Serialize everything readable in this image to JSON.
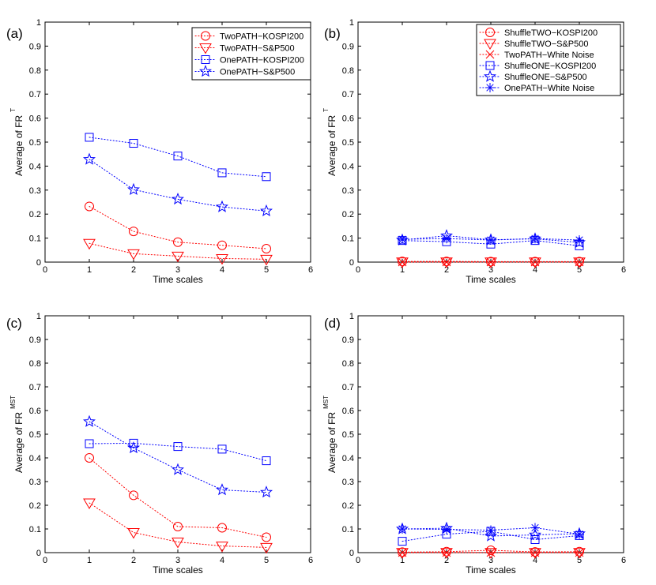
{
  "chart_data": [
    {
      "type": "line",
      "panel_label": "(a)",
      "xlabel": "Time scales",
      "ylabel": "Average of FR",
      "ylabel_sup": "T",
      "xlim": [
        0,
        6
      ],
      "ylim": [
        0,
        1
      ],
      "xticks": [
        "0",
        "1",
        "2",
        "3",
        "4",
        "5",
        "6"
      ],
      "yticks": [
        "0",
        "0.1",
        "0.2",
        "0.3",
        "0.4",
        "0.5",
        "0.6",
        "0.7",
        "0.8",
        "0.9",
        "1"
      ],
      "legend_position": "top-right",
      "x": [
        1,
        2,
        3,
        4,
        5
      ],
      "series": [
        {
          "name": "TwoPATH−KOSPI200",
          "marker": "circle",
          "color": "#ff0000",
          "values": [
            0.232,
            0.128,
            0.083,
            0.07,
            0.056
          ]
        },
        {
          "name": "TwoPATH−S&P500",
          "marker": "triangle-down",
          "color": "#ff0000",
          "values": [
            0.078,
            0.035,
            0.025,
            0.015,
            0.012
          ]
        },
        {
          "name": "OnePATH−KOSPI200",
          "marker": "square",
          "color": "#0000ff",
          "values": [
            0.52,
            0.495,
            0.442,
            0.372,
            0.356
          ]
        },
        {
          "name": "OnePATH−S&P500",
          "marker": "star",
          "color": "#0000ff",
          "values": [
            0.428,
            0.302,
            0.262,
            0.23,
            0.213
          ]
        }
      ]
    },
    {
      "type": "line",
      "panel_label": "(b)",
      "xlabel": "Time scales",
      "ylabel": "Average of FR",
      "ylabel_sup": "T",
      "xlim": [
        0,
        6
      ],
      "ylim": [
        0,
        1
      ],
      "xticks": [
        "0",
        "1",
        "2",
        "3",
        "4",
        "5",
        "6"
      ],
      "yticks": [
        "0",
        "0.1",
        "0.2",
        "0.3",
        "0.4",
        "0.5",
        "0.6",
        "0.7",
        "0.8",
        "0.9",
        "1"
      ],
      "legend_position": "top-right",
      "x": [
        1,
        2,
        3,
        4,
        5
      ],
      "series": [
        {
          "name": "ShuffleTWO−KOSPI200",
          "marker": "circle",
          "color": "#ff0000",
          "values": [
            0.003,
            0.003,
            0.002,
            0.002,
            0.002
          ]
        },
        {
          "name": "ShuffleTWO−S&P500",
          "marker": "triangle-down",
          "color": "#ff0000",
          "values": [
            0.001,
            0.001,
            0.001,
            0.001,
            0.001
          ]
        },
        {
          "name": "TwoPATH−White Noise",
          "marker": "x",
          "color": "#ff0000",
          "values": [
            0.0,
            0.0,
            0.0,
            0.0,
            0.0
          ]
        },
        {
          "name": "ShuffleONE−KOSPI200",
          "marker": "square",
          "color": "#0000ff",
          "values": [
            0.09,
            0.085,
            0.075,
            0.09,
            0.068
          ]
        },
        {
          "name": "ShuffleONE−S&P500",
          "marker": "star",
          "color": "#0000ff",
          "values": [
            0.092,
            0.11,
            0.093,
            0.097,
            0.082
          ]
        },
        {
          "name": "OnePATH−White Noise",
          "marker": "asterisk",
          "color": "#0000ff",
          "values": [
            0.095,
            0.098,
            0.092,
            0.098,
            0.092
          ]
        }
      ]
    },
    {
      "type": "line",
      "panel_label": "(c)",
      "xlabel": "Time scales",
      "ylabel": "Average of FR",
      "ylabel_sup": "MST",
      "xlim": [
        0,
        6
      ],
      "ylim": [
        0,
        1
      ],
      "xticks": [
        "0",
        "1",
        "2",
        "3",
        "4",
        "5",
        "6"
      ],
      "yticks": [
        "0",
        "0.1",
        "0.2",
        "0.3",
        "0.4",
        "0.5",
        "0.6",
        "0.7",
        "0.8",
        "0.9",
        "1"
      ],
      "x": [
        1,
        2,
        3,
        4,
        5
      ],
      "series": [
        {
          "marker": "circle",
          "color": "#ff0000",
          "values": [
            0.4,
            0.242,
            0.11,
            0.105,
            0.065
          ]
        },
        {
          "marker": "triangle-down",
          "color": "#ff0000",
          "values": [
            0.21,
            0.085,
            0.045,
            0.028,
            0.022
          ]
        },
        {
          "marker": "square",
          "color": "#0000ff",
          "values": [
            0.46,
            0.462,
            0.448,
            0.437,
            0.388
          ]
        },
        {
          "marker": "star",
          "color": "#0000ff",
          "values": [
            0.553,
            0.442,
            0.35,
            0.265,
            0.255
          ]
        }
      ]
    },
    {
      "type": "line",
      "panel_label": "(d)",
      "xlabel": "Time scales",
      "ylabel": "Average of FR",
      "ylabel_sup": "MST",
      "xlim": [
        0,
        6
      ],
      "ylim": [
        0,
        1
      ],
      "xticks": [
        "0",
        "1",
        "2",
        "3",
        "4",
        "5",
        "6"
      ],
      "yticks": [
        "0",
        "0.1",
        "0.2",
        "0.3",
        "0.4",
        "0.5",
        "0.6",
        "0.7",
        "0.8",
        "0.9",
        "1"
      ],
      "x": [
        1,
        2,
        3,
        4,
        5
      ],
      "series": [
        {
          "marker": "circle",
          "color": "#ff0000",
          "values": [
            0.002,
            0.004,
            0.01,
            0.003,
            0.004
          ]
        },
        {
          "marker": "triangle-down",
          "color": "#ff0000",
          "values": [
            0.001,
            0.001,
            0.001,
            0.001,
            0.001
          ]
        },
        {
          "marker": "x",
          "color": "#ff0000",
          "values": [
            0.0,
            0.0,
            0.0,
            0.0,
            0.0
          ]
        },
        {
          "marker": "square",
          "color": "#0000ff",
          "values": [
            0.048,
            0.078,
            0.09,
            0.055,
            0.072
          ]
        },
        {
          "marker": "star",
          "color": "#0000ff",
          "values": [
            0.1,
            0.103,
            0.07,
            0.075,
            0.08
          ]
        },
        {
          "marker": "asterisk",
          "color": "#0000ff",
          "values": [
            0.1,
            0.098,
            0.095,
            0.105,
            0.078
          ]
        }
      ]
    }
  ]
}
